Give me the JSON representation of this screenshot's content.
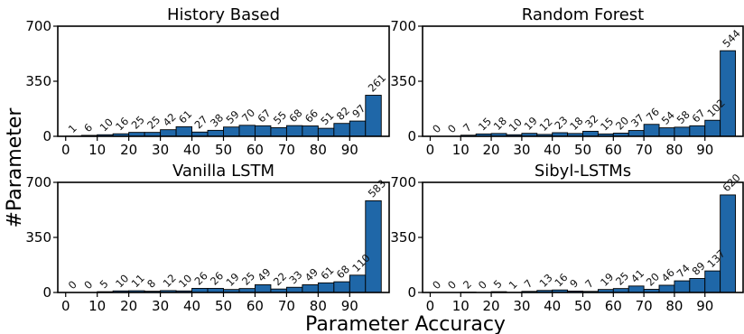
{
  "figure": {
    "ylabel": "#Parameter",
    "xlabel": "Parameter Accuracy"
  },
  "chart_data": [
    {
      "type": "bar",
      "title": "History Based",
      "xticks": [
        "0",
        "10",
        "20",
        "30",
        "40",
        "50",
        "60",
        "70",
        "80",
        "90"
      ],
      "yticks": [
        "0",
        "350",
        "700"
      ],
      "ylim": [
        0,
        700
      ],
      "bins": [
        0,
        5,
        10,
        15,
        20,
        25,
        30,
        35,
        40,
        45,
        50,
        55,
        60,
        65,
        70,
        75,
        80,
        85,
        90,
        95
      ],
      "values": [
        1,
        6,
        10,
        16,
        25,
        25,
        42,
        61,
        27,
        38,
        59,
        70,
        67,
        55,
        68,
        66,
        51,
        82,
        97,
        261
      ],
      "color": "#1f67a8"
    },
    {
      "type": "bar",
      "title": "Random Forest",
      "xticks": [
        "0",
        "10",
        "20",
        "30",
        "40",
        "50",
        "60",
        "70",
        "80",
        "90"
      ],
      "yticks": [
        "0",
        "350",
        "700"
      ],
      "ylim": [
        0,
        700
      ],
      "bins": [
        0,
        5,
        10,
        15,
        20,
        25,
        30,
        35,
        40,
        45,
        50,
        55,
        60,
        65,
        70,
        75,
        80,
        85,
        90,
        95
      ],
      "values": [
        0,
        0,
        7,
        15,
        18,
        10,
        19,
        12,
        23,
        18,
        32,
        15,
        20,
        37,
        76,
        54,
        58,
        67,
        102,
        544
      ],
      "color": "#1f67a8"
    },
    {
      "type": "bar",
      "title": "Vanilla LSTM",
      "xticks": [
        "0",
        "10",
        "20",
        "30",
        "40",
        "50",
        "60",
        "70",
        "80",
        "90"
      ],
      "yticks": [
        "0",
        "350",
        "700"
      ],
      "ylim": [
        0,
        700
      ],
      "bins": [
        0,
        5,
        10,
        15,
        20,
        25,
        30,
        35,
        40,
        45,
        50,
        55,
        60,
        65,
        70,
        75,
        80,
        85,
        90,
        95
      ],
      "values": [
        0,
        0,
        5,
        10,
        11,
        8,
        12,
        10,
        26,
        26,
        19,
        25,
        49,
        22,
        33,
        49,
        61,
        68,
        110,
        583
      ],
      "color": "#1f67a8"
    },
    {
      "type": "bar",
      "title": "Sibyl-LSTMs",
      "xticks": [
        "0",
        "10",
        "20",
        "30",
        "40",
        "50",
        "60",
        "70",
        "80",
        "90"
      ],
      "yticks": [
        "0",
        "350",
        "700"
      ],
      "ylim": [
        0,
        700
      ],
      "bins": [
        0,
        5,
        10,
        15,
        20,
        25,
        30,
        35,
        40,
        45,
        50,
        55,
        60,
        65,
        70,
        75,
        80,
        85,
        90,
        95
      ],
      "values": [
        0,
        0,
        2,
        0,
        5,
        1,
        7,
        13,
        16,
        9,
        7,
        19,
        25,
        41,
        20,
        46,
        74,
        89,
        137,
        620
      ],
      "color": "#1f67a8"
    }
  ]
}
